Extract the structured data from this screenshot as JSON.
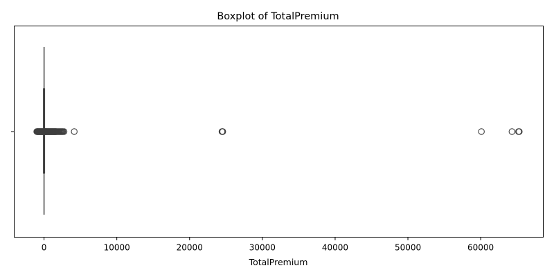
{
  "chart_data": {
    "type": "boxplot",
    "orientation": "horizontal",
    "title": "Boxplot of TotalPremium",
    "xlabel": "TotalPremium",
    "ylabel": "",
    "xlim": [
      -4100,
      68600
    ],
    "xticks": [
      0,
      10000,
      20000,
      30000,
      40000,
      50000,
      60000
    ],
    "xtick_labels": [
      "0",
      "10000",
      "20000",
      "30000",
      "40000",
      "50000",
      "60000"
    ],
    "grid": false,
    "legend": "none",
    "series": [
      {
        "box": {
          "whisker_low": 0,
          "q1": 0,
          "median": 0,
          "q3": 2,
          "whisker_high": 5
        },
        "outliers": [
          -1000,
          -950,
          -900,
          -850,
          -800,
          -750,
          -700,
          -650,
          -600,
          -550,
          -500,
          -450,
          -400,
          -350,
          -300,
          -250,
          -200,
          -150,
          -100,
          -50,
          20,
          50,
          80,
          120,
          160,
          200,
          240,
          280,
          320,
          360,
          400,
          450,
          500,
          550,
          600,
          650,
          700,
          750,
          800,
          850,
          900,
          950,
          1000,
          1050,
          1100,
          1150,
          1200,
          1250,
          1300,
          1350,
          1400,
          1450,
          1500,
          1550,
          1600,
          1650,
          1700,
          1800,
          1900,
          2000,
          2100,
          2200,
          2300,
          2400,
          2500,
          2600,
          2750,
          4150,
          24450,
          24520,
          24560,
          60100,
          64300,
          65200,
          65300
        ]
      }
    ],
    "colors": {
      "box_line": "#3f3f3f",
      "outlier_edge": "#3f3f3f",
      "axes": "#000000",
      "background": "#ffffff"
    }
  }
}
